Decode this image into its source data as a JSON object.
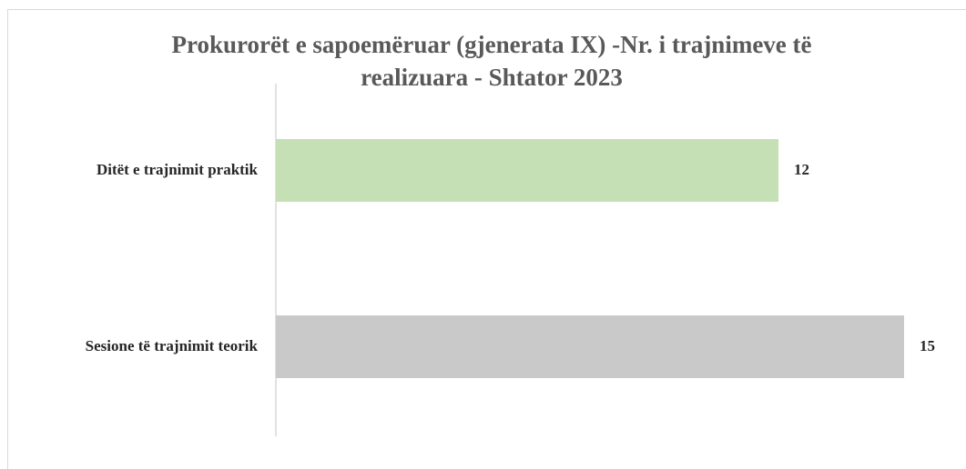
{
  "chart_data": {
    "type": "bar",
    "orientation": "horizontal",
    "title": [
      "Prokurorët e sapoemëruar (gjenerata IX) -Nr. i trajnimeve të",
      "realizuara - Shtator 2023"
    ],
    "categories": [
      "Ditët e trajnimit praktik",
      "Sesione të trajnimit teorik"
    ],
    "values": [
      12,
      15
    ],
    "colors": [
      "#c5e0b4",
      "#c9c9c9"
    ]
  }
}
